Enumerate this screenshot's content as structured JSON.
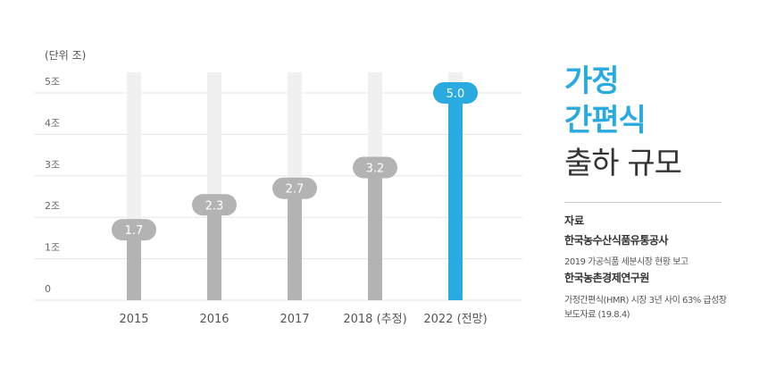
{
  "chart_data": {
    "type": "bar",
    "unit_label": "(단위 조)",
    "categories": [
      "2015",
      "2016",
      "2017",
      "2018 (추정)",
      "2022 (전망)"
    ],
    "values": [
      1.7,
      2.3,
      2.7,
      3.2,
      5.0
    ],
    "value_labels": [
      "1.7",
      "2.3",
      "2.7",
      "3.2",
      "5.0"
    ],
    "y_ticks": [
      "0",
      "1조",
      "2조",
      "3조",
      "4조",
      "5조"
    ],
    "ylim": [
      0,
      5.5
    ],
    "grid": true,
    "colors": {
      "bar": "#b3b3b3",
      "highlight_bar": "#29abe2",
      "track": "#f0f0f0",
      "label_bg": "#b3b3b3",
      "highlight_label_bg": "#29abe2",
      "grid": "#e5e5e5"
    },
    "highlight_index": 4
  },
  "side": {
    "title_line1": "가정",
    "title_line2": "간편식",
    "title_line3": "출하 규모",
    "source_label": "자료",
    "source1_org": "한국농수산식품유통공사",
    "source1_doc": "2019 가공식품 세분시장 현황 보고",
    "source2_org": "한국농촌경제연구원",
    "source2_doc_line1": "가정간편식(HMR) 시장 3년 사이 63% 급성장",
    "source2_doc_line2": "보도자료 (19.8.4)"
  }
}
